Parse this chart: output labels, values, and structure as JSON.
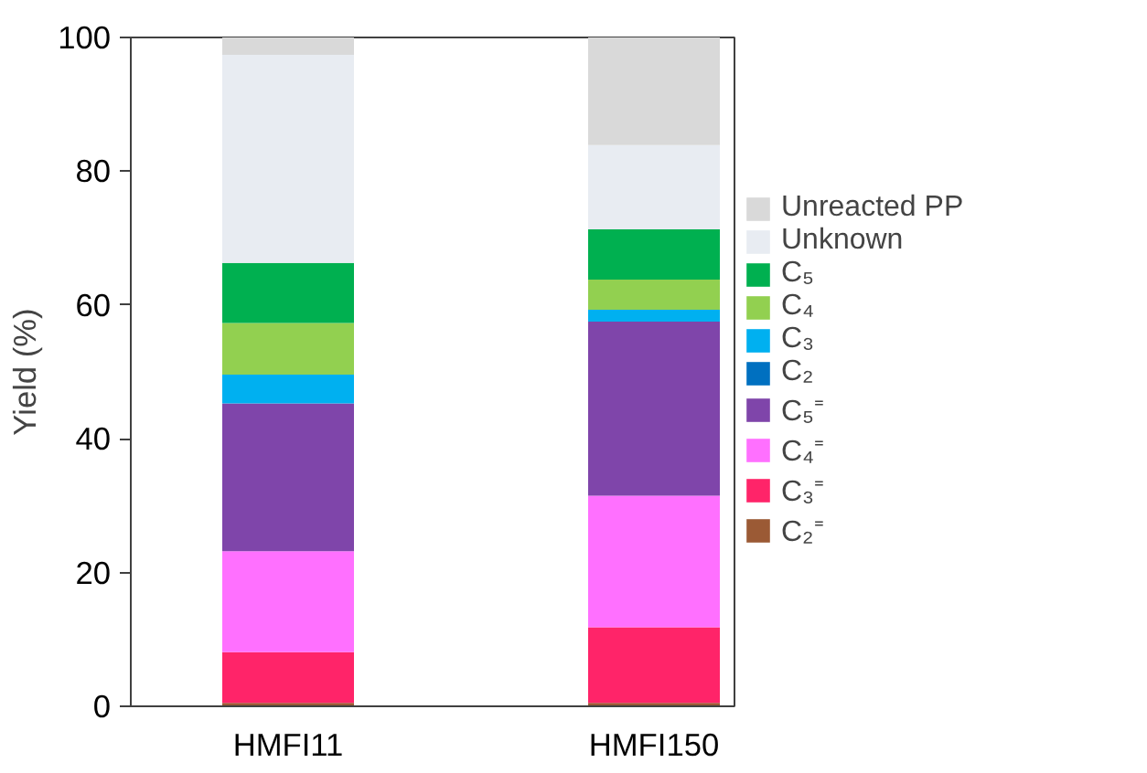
{
  "chart_data": {
    "type": "bar",
    "stacked": true,
    "ylabel": "Yield (%)",
    "categories": [
      "HMFI11",
      "HMFI150"
    ],
    "ylim": [
      0,
      100
    ],
    "yticks": [
      0,
      20,
      40,
      60,
      80,
      100
    ],
    "grid": false,
    "legend": "right",
    "series": [
      {
        "name": "C₂⁼",
        "color": "#9b5a35",
        "values": [
          0.5,
          0.5
        ]
      },
      {
        "name": "C₃⁼",
        "color": "#ff2469",
        "values": [
          7.6,
          11.3
        ]
      },
      {
        "name": "C₄⁼",
        "color": "#ff70ff",
        "values": [
          15.1,
          19.7
        ]
      },
      {
        "name": "C₅⁼",
        "color": "#7f45aa",
        "values": [
          22.1,
          26.0
        ]
      },
      {
        "name": "C₂",
        "color": "#0070c0",
        "values": [
          0,
          0
        ]
      },
      {
        "name": "C₃",
        "color": "#00b0f0",
        "values": [
          4.3,
          1.8
        ]
      },
      {
        "name": "C₄",
        "color": "#92d050",
        "values": [
          7.7,
          4.5
        ]
      },
      {
        "name": "C₅",
        "color": "#00b050",
        "values": [
          9.0,
          7.5
        ]
      },
      {
        "name": "Unknown",
        "color": "#e8ecf2",
        "values": [
          31.1,
          12.6
        ]
      },
      {
        "name": "Unreacted PP",
        "color": "#d9d9d9",
        "values": [
          2.6,
          16.1
        ]
      }
    ]
  }
}
